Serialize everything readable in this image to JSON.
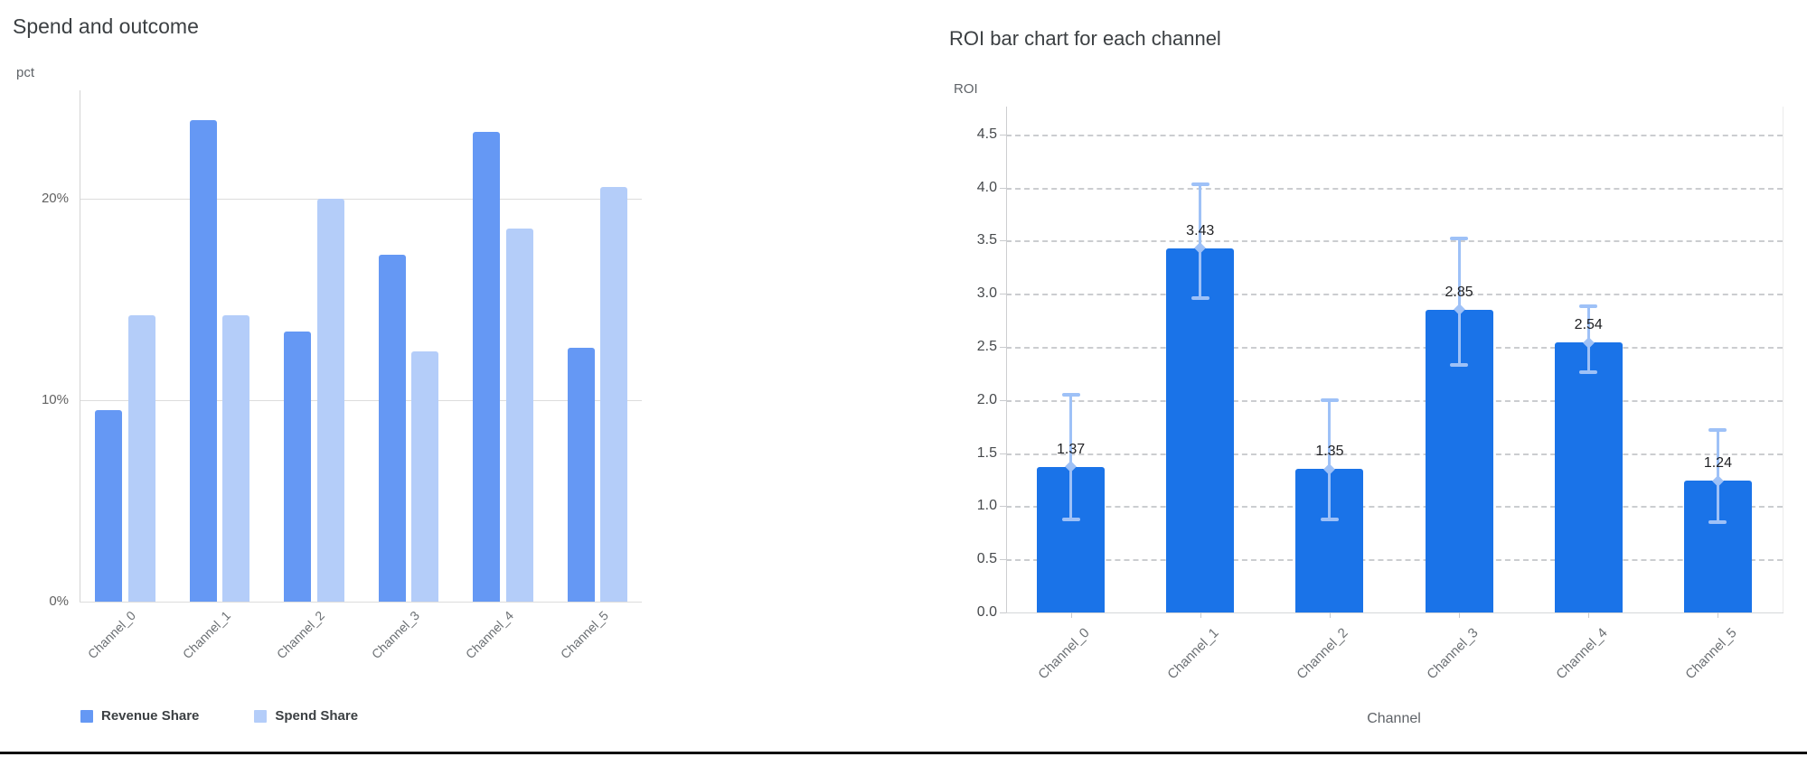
{
  "window": {
    "bottom_border_color": "#0e0e0e"
  },
  "chart_data": [
    {
      "type": "bar",
      "title": "Spend and outcome",
      "ylabel": "pct",
      "xlabel": "",
      "categories": [
        "Channel_0",
        "Channel_1",
        "Channel_2",
        "Channel_3",
        "Channel_4",
        "Channel_5"
      ],
      "series": [
        {
          "name": "Revenue Share",
          "color": "#6598f4",
          "values": [
            9.5,
            23.9,
            13.4,
            17.2,
            23.3,
            12.6
          ]
        },
        {
          "name": "Spend Share",
          "color": "#b4cdf9",
          "values": [
            14.2,
            14.2,
            20.0,
            12.4,
            18.5,
            20.6
          ]
        }
      ],
      "yticks": [
        {
          "value": 0,
          "label": "0%"
        },
        {
          "value": 10,
          "label": "10%"
        },
        {
          "value": 20,
          "label": "20%"
        }
      ],
      "ylim": [
        0,
        25.4
      ],
      "grid": "solid",
      "legend_position": "bottom"
    },
    {
      "type": "bar",
      "title": "ROI bar chart for each channel",
      "ylabel": "ROI",
      "xlabel": "Channel",
      "categories": [
        "Channel_0",
        "Channel_1",
        "Channel_2",
        "Channel_3",
        "Channel_4",
        "Channel_5"
      ],
      "values": [
        1.37,
        3.43,
        1.35,
        2.85,
        2.54,
        1.24
      ],
      "error_bars": [
        {
          "lo": 0.88,
          "hi": 2.05
        },
        {
          "lo": 2.96,
          "hi": 4.03
        },
        {
          "lo": 0.88,
          "hi": 2.0
        },
        {
          "lo": 2.33,
          "hi": 3.52
        },
        {
          "lo": 2.26,
          "hi": 2.88
        },
        {
          "lo": 0.85,
          "hi": 1.72
        }
      ],
      "bar_color": "#1a73e8",
      "error_color": "#9ec1f7",
      "yticks": [
        "0.0",
        "0.5",
        "1.0",
        "1.5",
        "2.0",
        "2.5",
        "3.0",
        "3.5",
        "4.0",
        "4.5"
      ],
      "ylim": [
        0,
        4.76
      ],
      "grid": "dashed",
      "legend_position": "none"
    }
  ]
}
